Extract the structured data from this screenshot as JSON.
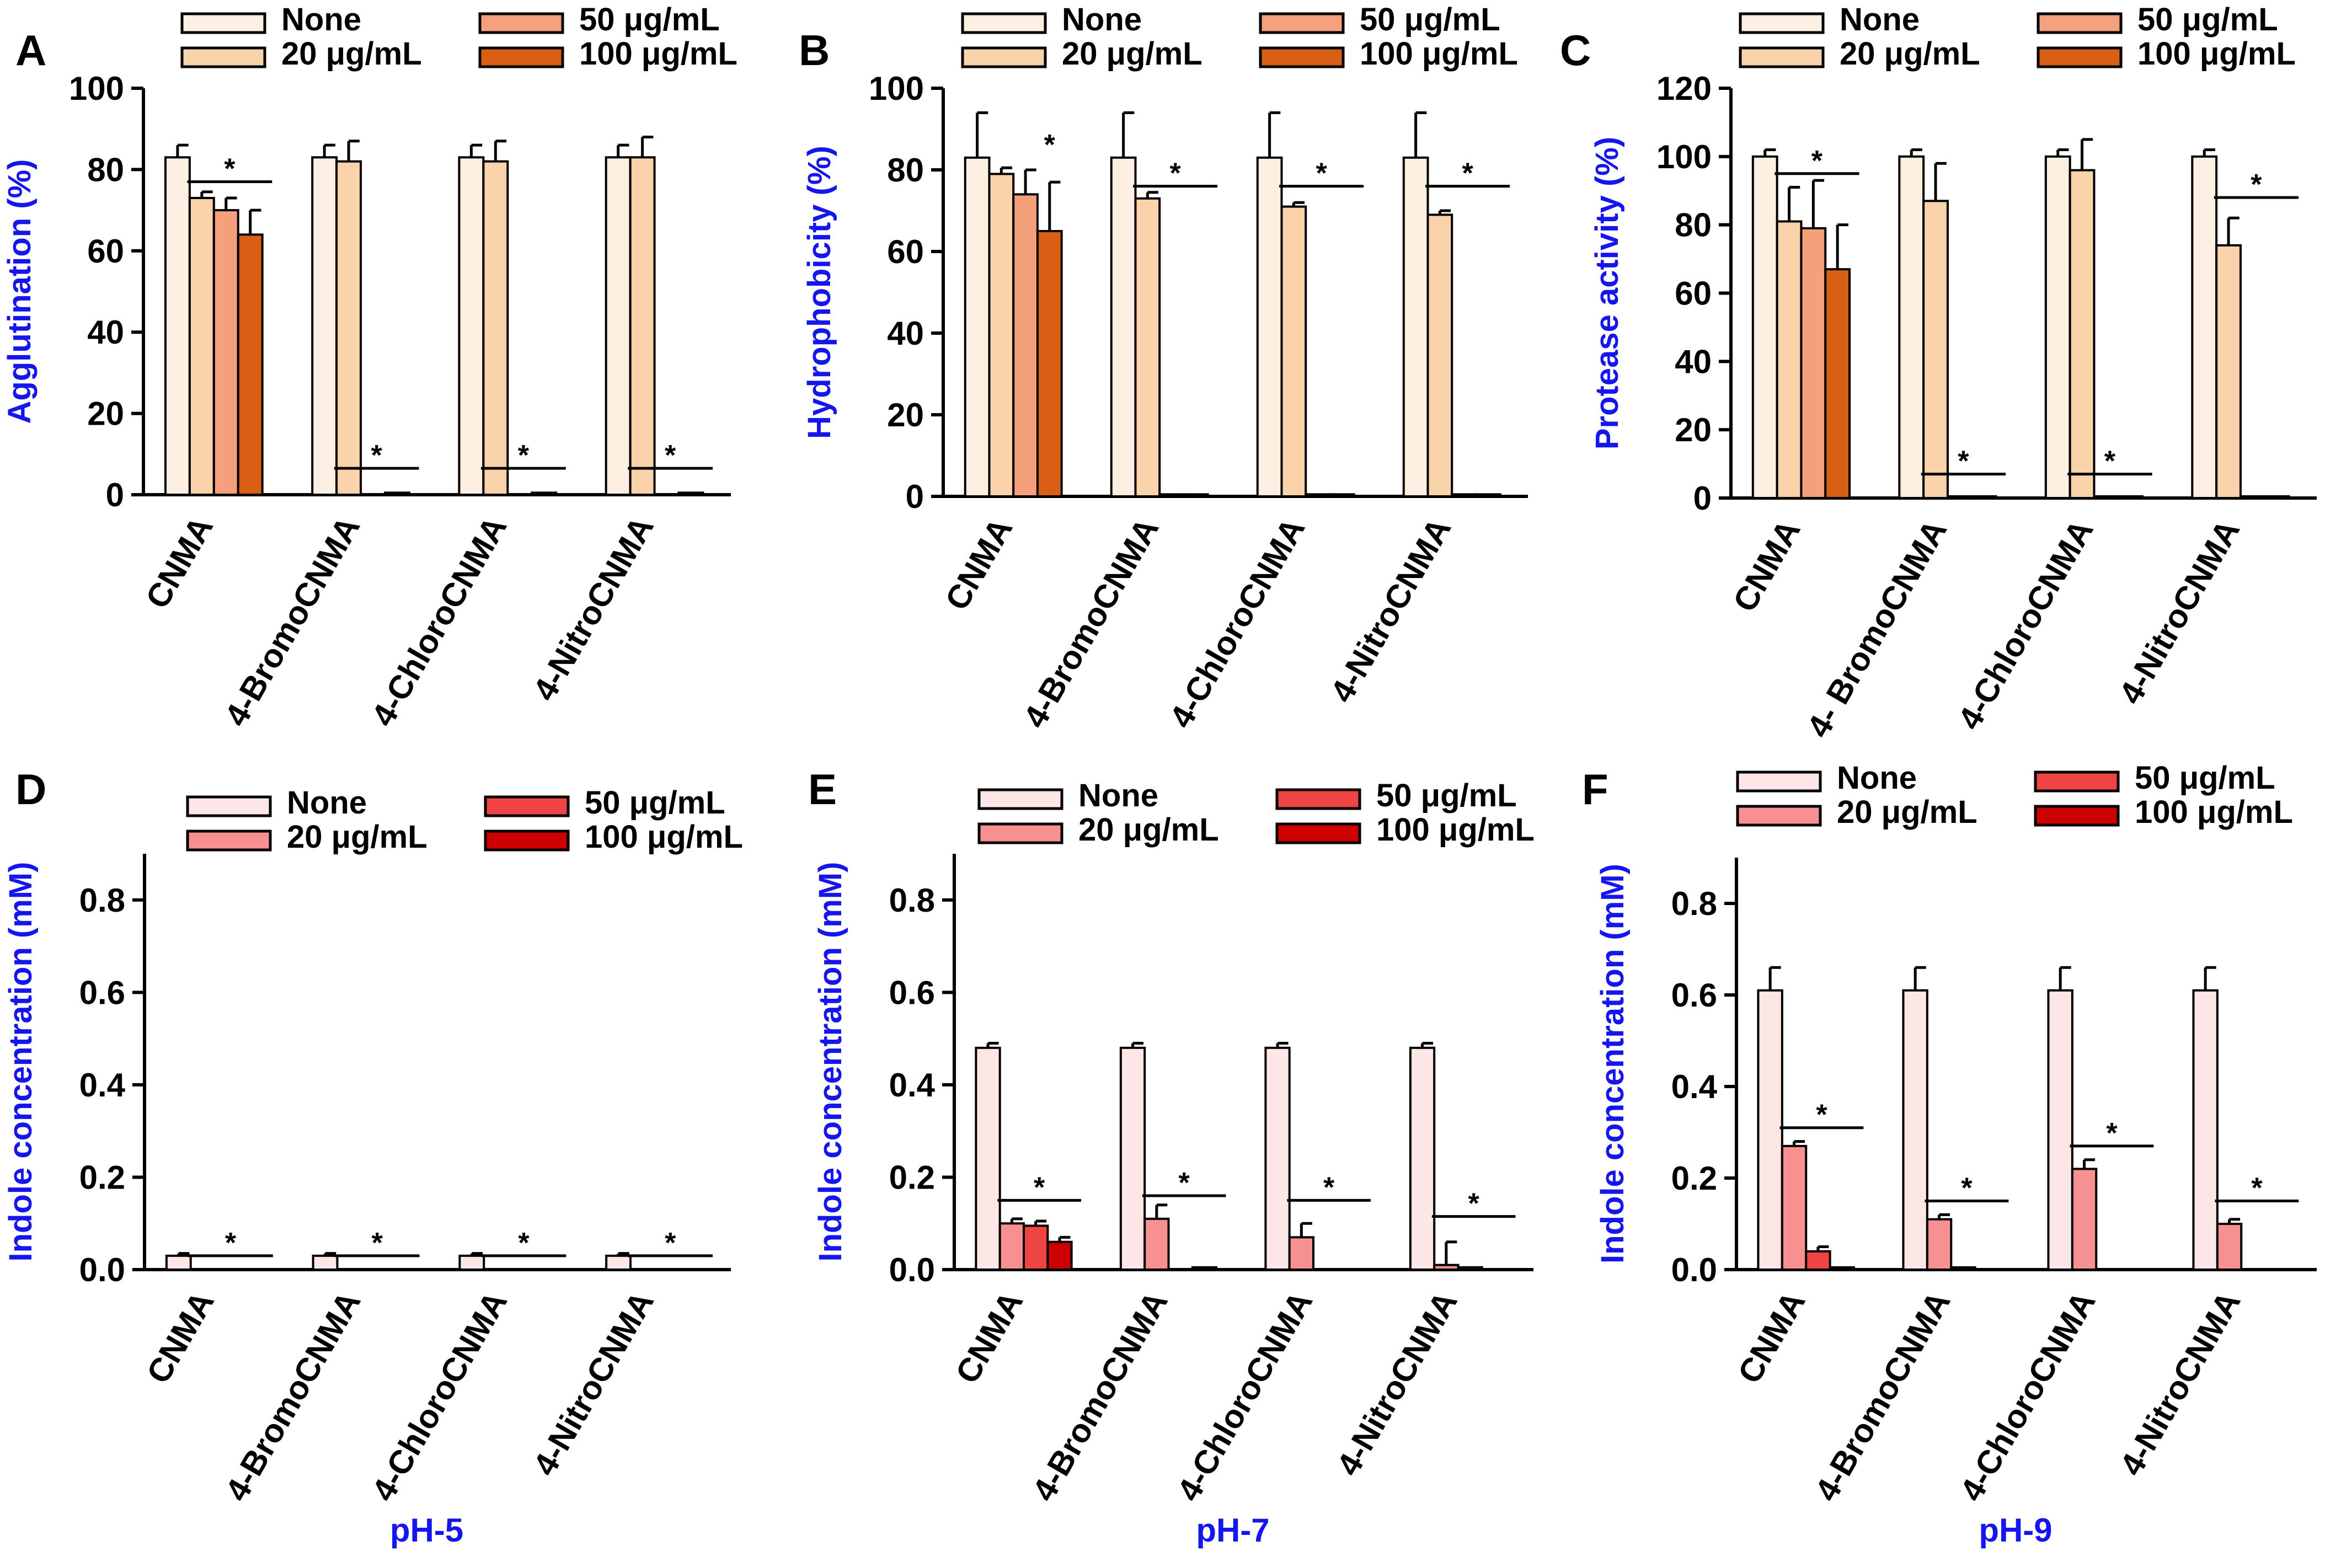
{
  "chart_data": [
    {
      "type": "bar",
      "panel": "A",
      "ylabel": "Agglutination (%)",
      "ylim": [
        0,
        100
      ],
      "yticks": [
        0,
        20,
        40,
        60,
        80,
        100
      ],
      "categories": [
        "CNMA",
        "4-BromoCNMA",
        "4-ChloroCNMA",
        "4-NitroCNMA"
      ],
      "legend": [
        "None",
        "20 μg/mL",
        "50 μg/mL",
        "100 μg/mL"
      ],
      "colors": [
        "#fdf0e3",
        "#fbd3ab",
        "#f4a07c",
        "#d95f14"
      ],
      "series": [
        {
          "name": "None",
          "values": [
            83,
            83,
            83,
            83
          ],
          "errors": [
            3,
            3,
            3,
            3
          ]
        },
        {
          "name": "20 μg/mL",
          "values": [
            73,
            82,
            82,
            83
          ],
          "errors": [
            1.5,
            5,
            5,
            5
          ]
        },
        {
          "name": "50 μg/mL",
          "values": [
            70,
            0,
            0,
            0
          ],
          "errors": [
            3,
            0,
            0,
            0
          ]
        },
        {
          "name": "100 μg/mL",
          "values": [
            64,
            0.5,
            0.5,
            0.5
          ],
          "errors": [
            6,
            0,
            0,
            0
          ]
        }
      ],
      "significance": [
        {
          "category": 0,
          "value": 77,
          "label": "*"
        },
        {
          "category": 1,
          "value": 6.5,
          "label": "*"
        },
        {
          "category": 2,
          "value": 6.5,
          "label": "*"
        },
        {
          "category": 3,
          "value": 6.5,
          "label": "*"
        }
      ],
      "caption": ""
    },
    {
      "type": "bar",
      "panel": "B",
      "ylabel": "Hydrophobicity (%)",
      "ylim": [
        0,
        100
      ],
      "yticks": [
        0,
        20,
        40,
        60,
        80,
        100
      ],
      "categories": [
        "CNMA",
        "4-BromoCNMA",
        "4-ChloroCNMA",
        "4-NitroCNMA"
      ],
      "legend": [
        "None",
        "20 μg/mL",
        "50 μg/mL",
        "100 μg/mL"
      ],
      "colors": [
        "#fdf0e3",
        "#fbd3ab",
        "#f4a07c",
        "#d95f14"
      ],
      "series": [
        {
          "name": "None",
          "values": [
            83,
            83,
            83,
            83
          ],
          "errors": [
            11,
            11,
            11,
            11
          ]
        },
        {
          "name": "20 μg/mL",
          "values": [
            79,
            73,
            71,
            69
          ],
          "errors": [
            1.5,
            1.5,
            1,
            1
          ]
        },
        {
          "name": "50 μg/mL",
          "values": [
            74,
            0.5,
            0.5,
            0.5
          ],
          "errors": [
            6,
            0,
            0,
            0
          ]
        },
        {
          "name": "100 μg/mL",
          "values": [
            65,
            0.5,
            0.5,
            0.5
          ],
          "errors": [
            12,
            0,
            0,
            0
          ]
        }
      ],
      "significance": [
        {
          "category": 0,
          "value": 83,
          "label": "*",
          "inline": true
        },
        {
          "category": 1,
          "value": 76,
          "label": "*"
        },
        {
          "category": 2,
          "value": 76,
          "label": "*"
        },
        {
          "category": 3,
          "value": 76,
          "label": "*"
        }
      ],
      "caption": ""
    },
    {
      "type": "bar",
      "panel": "C",
      "ylabel": "Protease activity (%)",
      "ylim": [
        0,
        120
      ],
      "yticks": [
        0,
        20,
        40,
        60,
        80,
        100,
        120
      ],
      "categories": [
        "CNMA",
        "4- BromoCNMA",
        "4-ChloroCNMA",
        "4-NitroCNMA"
      ],
      "legend": [
        "None",
        "20 μg/mL",
        "50 μg/mL",
        "100 μg/mL"
      ],
      "colors": [
        "#fdf0e3",
        "#fbd3ab",
        "#f4a07c",
        "#d95f14"
      ],
      "series": [
        {
          "name": "None",
          "values": [
            100,
            100,
            100,
            100
          ],
          "errors": [
            2,
            2,
            2,
            2
          ]
        },
        {
          "name": "20 μg/mL",
          "values": [
            81,
            87,
            96,
            74
          ],
          "errors": [
            10,
            11,
            9,
            8
          ]
        },
        {
          "name": "50 μg/mL",
          "values": [
            79,
            0.5,
            0.5,
            0.5
          ],
          "errors": [
            14,
            0,
            0,
            0
          ]
        },
        {
          "name": "100 μg/mL",
          "values": [
            67,
            0.5,
            0.5,
            0.5
          ],
          "errors": [
            13,
            0,
            0,
            0
          ]
        }
      ],
      "significance": [
        {
          "category": 0,
          "value": 95,
          "label": "*"
        },
        {
          "category": 1,
          "value": 7,
          "label": "*"
        },
        {
          "category": 2,
          "value": 7,
          "label": "*"
        },
        {
          "category": 3,
          "value": 88,
          "label": "*"
        }
      ],
      "caption": ""
    },
    {
      "type": "bar",
      "panel": "D",
      "ylabel": "Indole concentration (mM)",
      "ylim": [
        0,
        0.9
      ],
      "yticks": [
        0.0,
        0.2,
        0.4,
        0.6,
        0.8
      ],
      "categories": [
        "CNMA",
        "4-BromoCNMA",
        "4-ChloroCNMA",
        "4-NitroCNMA"
      ],
      "legend": [
        "None",
        "20 μg/mL",
        "50 μg/mL",
        "100 μg/mL"
      ],
      "colors": [
        "#fde6e6",
        "#f79090",
        "#ee4444",
        "#cc0000"
      ],
      "series": [
        {
          "name": "None",
          "values": [
            0.03,
            0.03,
            0.03,
            0.03
          ],
          "errors": [
            0.005,
            0.005,
            0.005,
            0.005
          ]
        },
        {
          "name": "20 μg/mL",
          "values": [
            0,
            0,
            0,
            0
          ],
          "errors": [
            0,
            0,
            0,
            0
          ]
        },
        {
          "name": "50 μg/mL",
          "values": [
            0,
            0,
            0,
            0
          ],
          "errors": [
            0,
            0,
            0,
            0
          ]
        },
        {
          "name": "100 μg/mL",
          "values": [
            0,
            0,
            0,
            0
          ],
          "errors": [
            0,
            0,
            0,
            0
          ]
        }
      ],
      "significance": [
        {
          "category": 0,
          "value": 0.03,
          "label": "*"
        },
        {
          "category": 1,
          "value": 0.03,
          "label": "*"
        },
        {
          "category": 2,
          "value": 0.03,
          "label": "*"
        },
        {
          "category": 3,
          "value": 0.03,
          "label": "*"
        }
      ],
      "caption": "pH-5"
    },
    {
      "type": "bar",
      "panel": "E",
      "ylabel": "Indole concentration (mM)",
      "ylim": [
        0,
        0.9
      ],
      "yticks": [
        0.0,
        0.2,
        0.4,
        0.6,
        0.8
      ],
      "categories": [
        "CNMA",
        "4-BromoCNMA",
        "4-ChloroCNMA",
        "4-NitroCNMA"
      ],
      "legend": [
        "None",
        "20 μg/mL",
        "50 μg/mL",
        "100 μg/mL"
      ],
      "colors": [
        "#fde6e6",
        "#f79090",
        "#ee4444",
        "#cc0000"
      ],
      "series": [
        {
          "name": "None",
          "values": [
            0.48,
            0.48,
            0.48,
            0.48
          ],
          "errors": [
            0.01,
            0.01,
            0.01,
            0.01
          ]
        },
        {
          "name": "20 μg/mL",
          "values": [
            0.1,
            0.11,
            0.07,
            0.01
          ],
          "errors": [
            0.01,
            0.03,
            0.03,
            0.05
          ]
        },
        {
          "name": "50 μg/mL",
          "values": [
            0.095,
            0,
            0,
            0.005
          ],
          "errors": [
            0.01,
            0,
            0,
            0
          ]
        },
        {
          "name": "100 μg/mL",
          "values": [
            0.06,
            0.005,
            0,
            0
          ],
          "errors": [
            0.01,
            0,
            0,
            0
          ]
        }
      ],
      "significance": [
        {
          "category": 0,
          "value": 0.15,
          "label": "*"
        },
        {
          "category": 1,
          "value": 0.16,
          "label": "*"
        },
        {
          "category": 2,
          "value": 0.15,
          "label": "*"
        },
        {
          "category": 3,
          "value": 0.115,
          "label": "*"
        }
      ],
      "caption": "pH-7"
    },
    {
      "type": "bar",
      "panel": "F",
      "ylabel": "Indole concentration (mM)",
      "ylim": [
        0,
        0.9
      ],
      "yticks": [
        0.0,
        0.2,
        0.4,
        0.6,
        0.8
      ],
      "categories": [
        "CNMA",
        "4-BromoCNMA",
        "4-ChloroCNMA",
        "4-NitroCNMA"
      ],
      "legend": [
        "None",
        "20 μg/mL",
        "50 μg/mL",
        "100 μg/mL"
      ],
      "colors": [
        "#fde6e6",
        "#f79090",
        "#ee4444",
        "#cc0000"
      ],
      "series": [
        {
          "name": "None",
          "values": [
            0.61,
            0.61,
            0.61,
            0.61
          ],
          "errors": [
            0.05,
            0.05,
            0.05,
            0.05
          ]
        },
        {
          "name": "20 μg/mL",
          "values": [
            0.27,
            0.11,
            0.22,
            0.1
          ],
          "errors": [
            0.01,
            0.01,
            0.02,
            0.01
          ]
        },
        {
          "name": "50 μg/mL",
          "values": [
            0.04,
            0.005,
            0,
            0
          ],
          "errors": [
            0.01,
            0,
            0,
            0
          ]
        },
        {
          "name": "100 μg/mL",
          "values": [
            0.005,
            0,
            0,
            0
          ],
          "errors": [
            0,
            0,
            0,
            0
          ]
        }
      ],
      "significance": [
        {
          "category": 0,
          "value": 0.31,
          "label": "*"
        },
        {
          "category": 1,
          "value": 0.15,
          "label": "*"
        },
        {
          "category": 2,
          "value": 0.27,
          "label": "*"
        },
        {
          "category": 3,
          "value": 0.15,
          "label": "*"
        }
      ],
      "caption": "pH-9"
    }
  ]
}
